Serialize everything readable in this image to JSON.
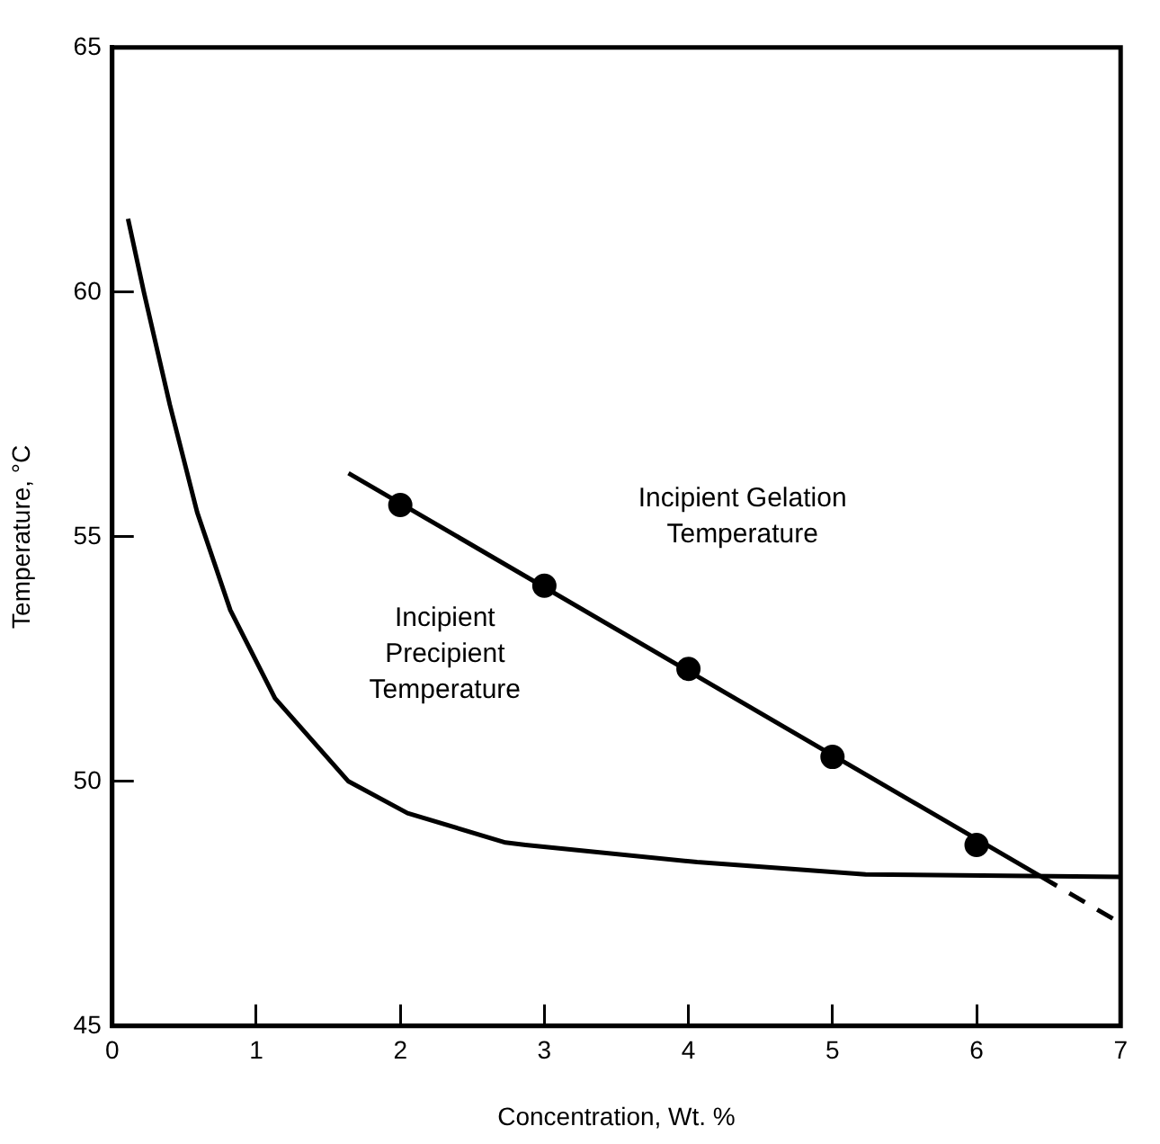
{
  "chart_data": {
    "type": "line",
    "xlabel": "Concentration, Wt. %",
    "ylabel": "Temperature, °C",
    "xlim": [
      0,
      7
    ],
    "xticks": [
      0,
      1,
      2,
      3,
      4,
      5,
      6,
      7
    ],
    "ylim": [
      45,
      65
    ],
    "yticks": [
      45,
      50,
      55,
      60,
      65
    ],
    "grid": false,
    "legend": false,
    "series": [
      {
        "color": "#000000",
        "marker": "none",
        "line_style": "solid",
        "x": [
          0.11,
          0.22,
          0.4,
          0.59,
          0.82,
          1.13,
          1.64,
          2.05,
          2.73,
          2.87,
          4.06,
          5.23,
          7.0
        ],
        "values": [
          61.5,
          60.0,
          57.7,
          55.5,
          53.5,
          51.7,
          50.0,
          49.35,
          48.75,
          48.7,
          48.35,
          48.1,
          48.05
        ]
      },
      {
        "type": "scatter",
        "color": "#000000",
        "marker": "circle",
        "x": [
          2,
          3,
          4,
          5,
          6
        ],
        "values": [
          55.65,
          54.0,
          52.3,
          50.5,
          48.7
        ]
      },
      {
        "color": "#000000",
        "marker": "none",
        "line_style": "solid",
        "x": [
          1.64,
          6.45
        ],
        "values": [
          56.3,
          48.05
        ]
      },
      {
        "color": "#000000",
        "marker": "none",
        "line_style": "dashed",
        "x": [
          6.45,
          7.0
        ],
        "values": [
          48.05,
          47.1
        ]
      }
    ],
    "annotations": [
      "Incipient Gelation\nTemperature",
      "Incipient\nPrecipient\nTemperature"
    ]
  }
}
